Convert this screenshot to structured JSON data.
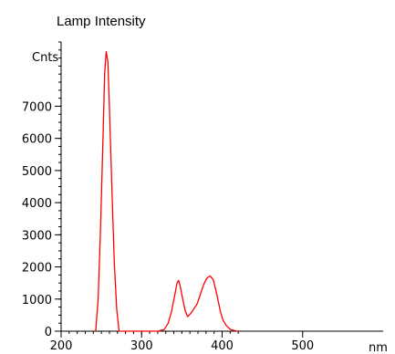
{
  "chart_data": {
    "type": "line",
    "title": "Lamp Intensity",
    "xlabel": "nm",
    "ylabel": "Cnts",
    "xlim": [
      200,
      600
    ],
    "ylim": [
      0,
      9000
    ],
    "grid": false,
    "x_ticks": [
      200,
      300,
      400,
      500
    ],
    "y_ticks": [
      0,
      1000,
      2000,
      3000,
      4000,
      5000,
      6000,
      7000
    ],
    "series": [
      {
        "color": "#ff0000",
        "points": [
          [
            243,
            0
          ],
          [
            246,
            1000
          ],
          [
            249,
            3200
          ],
          [
            252,
            6000
          ],
          [
            254,
            8000
          ],
          [
            256,
            8700
          ],
          [
            258,
            8400
          ],
          [
            260,
            7000
          ],
          [
            263,
            4500
          ],
          [
            266,
            2200
          ],
          [
            269,
            700
          ],
          [
            272,
            0
          ],
          [
            320,
            0
          ],
          [
            328,
            50
          ],
          [
            333,
            250
          ],
          [
            337,
            600
          ],
          [
            341,
            1100
          ],
          [
            344,
            1500
          ],
          [
            346,
            1580
          ],
          [
            348,
            1400
          ],
          [
            351,
            1000
          ],
          [
            354,
            650
          ],
          [
            357,
            450
          ],
          [
            361,
            550
          ],
          [
            365,
            700
          ],
          [
            369,
            850
          ],
          [
            373,
            1150
          ],
          [
            377,
            1450
          ],
          [
            381,
            1650
          ],
          [
            385,
            1720
          ],
          [
            389,
            1600
          ],
          [
            392,
            1300
          ],
          [
            395,
            950
          ],
          [
            398,
            600
          ],
          [
            401,
            350
          ],
          [
            405,
            180
          ],
          [
            410,
            60
          ],
          [
            415,
            20
          ],
          [
            420,
            0
          ]
        ]
      }
    ]
  }
}
